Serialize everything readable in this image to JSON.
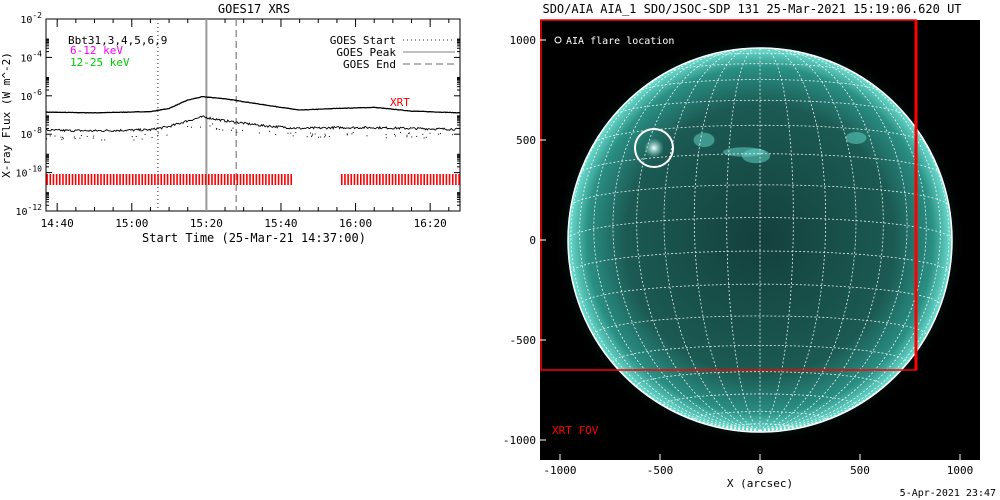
{
  "chart_data": [
    {
      "type": "line",
      "title": "GOES17 XRS",
      "xlabel": "Start Time (25-Mar-21 14:37:00)",
      "ylabel": "X-ray Flux (W m^-2)",
      "y_scale": "log",
      "xlim": [
        "14:37",
        "16:28"
      ],
      "ylim": [
        1e-12,
        0.01
      ],
      "x_ticks": [
        "14:40",
        "15:00",
        "15:20",
        "15:40",
        "16:00",
        "16:20"
      ],
      "y_ticks": [
        "10^-12",
        "10^-10",
        "10^-8",
        "10^-6",
        "10^-4",
        "10^-2"
      ],
      "info_label": "Bbt31,3,4,5,6,9",
      "series": [
        {
          "name": "6-12 keV",
          "color": "#ff00ff",
          "x": [
            "14:37",
            "14:50",
            "15:05",
            "15:10",
            "15:15",
            "15:19",
            "15:25",
            "15:35",
            "15:45",
            "15:55",
            "16:05",
            "16:15",
            "16:28"
          ],
          "values": [
            1.4e-07,
            1.3e-07,
            1.5e-07,
            2.2e-07,
            6e-07,
            9e-07,
            7e-07,
            3.5e-07,
            1.8e-07,
            2.2e-07,
            2.5e-07,
            1.6e-07,
            1.3e-07
          ]
        },
        {
          "name": "12-25 keV",
          "color": "#00cc00",
          "x": [
            "14:37",
            "14:50",
            "15:05",
            "15:10",
            "15:15",
            "15:19",
            "15:25",
            "15:35",
            "15:45",
            "15:55",
            "16:05",
            "16:15",
            "16:28"
          ],
          "values": [
            1.6e-08,
            1.5e-08,
            1.7e-08,
            2.5e-08,
            5e-08,
            8e-08,
            5e-08,
            2.8e-08,
            2e-08,
            2.2e-08,
            2.2e-08,
            2e-08,
            1.8e-08
          ]
        }
      ],
      "vertical_lines": [
        {
          "name": "GOES Start",
          "x": "15:07",
          "style": "dotted"
        },
        {
          "name": "GOES Peak",
          "x": "15:20",
          "style": "solid"
        },
        {
          "name": "GOES End",
          "x": "15:28",
          "style": "dashed"
        }
      ],
      "xrt_label": "XRT",
      "xrt_coverage": [
        [
          "14:37",
          "15:43"
        ],
        [
          "15:56",
          "16:28"
        ]
      ]
    },
    {
      "type": "image",
      "title": "SDO/AIA AIA_1 SDO/JSOC-SDP 131 25-Mar-2021 15:19:06.620 UT",
      "xlabel": "X (arcsec)",
      "ylabel": "",
      "xlim": [
        -1100,
        1100
      ],
      "ylim": [
        -1100,
        1100
      ],
      "x_ticks": [
        "-1000",
        "-500",
        "0",
        "500",
        "1000"
      ],
      "y_ticks": [
        "1000",
        "500",
        "0",
        "-500",
        "-1000"
      ],
      "legend": "AIA flare location",
      "flare_location": {
        "x": -530,
        "y": 460
      },
      "solar_radius_arcsec": 960,
      "xrt_fov_label": "XRT FOV",
      "xrt_fov": {
        "x0": -1100,
        "x1": 780,
        "y0": -650,
        "y1": 1100
      },
      "colors": {
        "fov": "#ff0000",
        "disk": "#2fb5a8"
      }
    }
  ],
  "footer_date": "5-Apr-2021 23:47"
}
